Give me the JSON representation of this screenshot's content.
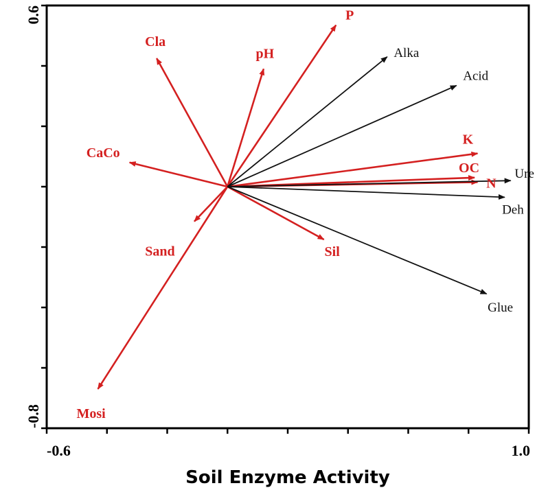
{
  "chart_data": {
    "type": "biplot",
    "xlabel": "Soil Enzyme Activity",
    "ylabel": "",
    "xlim": [
      -0.6,
      1.0
    ],
    "ylim": [
      -0.8,
      0.6
    ],
    "x_tick_labels": [
      "-0.6",
      "1.0"
    ],
    "y_tick_labels": [
      "-0.8",
      "0.6"
    ],
    "origin": [
      0.0,
      0.0
    ],
    "series": [
      {
        "group": "soil-properties",
        "color": "#d42020",
        "vectors": [
          {
            "label": "Cla",
            "x": -0.235,
            "y": 0.425
          },
          {
            "label": "pH",
            "x": 0.12,
            "y": 0.39
          },
          {
            "label": "P",
            "x": 0.36,
            "y": 0.535
          },
          {
            "label": "CaCo",
            "x": -0.325,
            "y": 0.08
          },
          {
            "label": "K",
            "x": 0.83,
            "y": 0.11
          },
          {
            "label": "OC",
            "x": 0.82,
            "y": 0.03
          },
          {
            "label": "N",
            "x": 0.83,
            "y": 0.015
          },
          {
            "label": "Sand",
            "x": -0.11,
            "y": -0.115
          },
          {
            "label": "Sil",
            "x": 0.32,
            "y": -0.175
          },
          {
            "label": "Mosi",
            "x": -0.43,
            "y": -0.67
          }
        ]
      },
      {
        "group": "enzymes",
        "color": "#111111",
        "vectors": [
          {
            "label": "Alka",
            "x": 0.53,
            "y": 0.43
          },
          {
            "label": "Acid",
            "x": 0.76,
            "y": 0.335
          },
          {
            "label": "Ure",
            "x": 0.94,
            "y": 0.02
          },
          {
            "label": "Deh",
            "x": 0.92,
            "y": -0.035
          },
          {
            "label": "Glue",
            "x": 0.86,
            "y": -0.355
          }
        ]
      }
    ]
  }
}
